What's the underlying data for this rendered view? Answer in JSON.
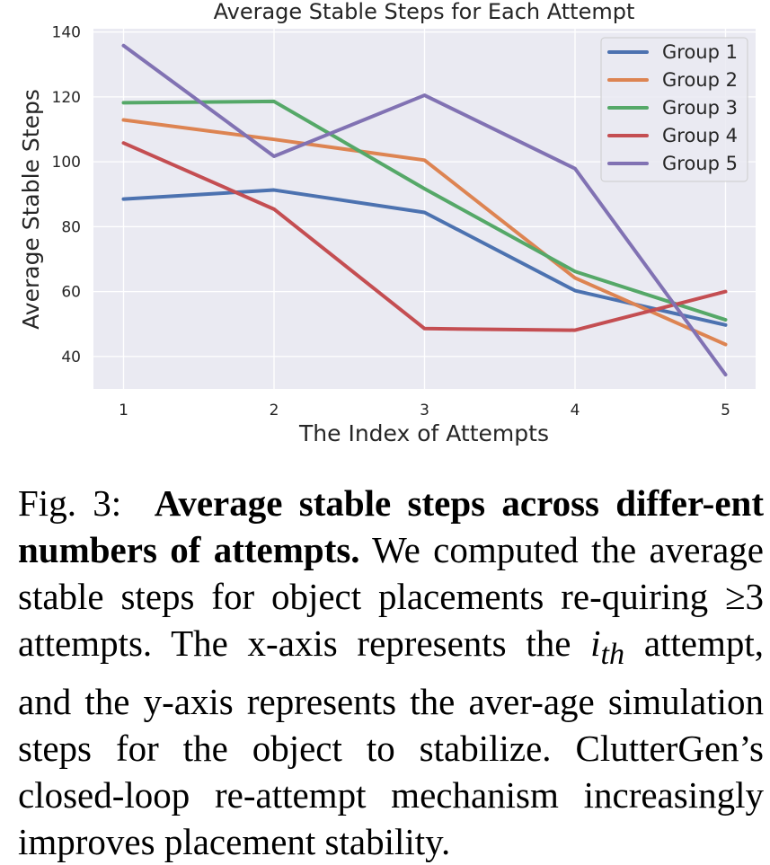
{
  "chart_data": {
    "type": "line",
    "title": "Average Stable Steps for Each Attempt",
    "xlabel": "The Index of Attempts",
    "ylabel": "Average Stable Steps",
    "x": [
      1,
      2,
      3,
      4,
      5
    ],
    "xticks": [
      "1",
      "2",
      "3",
      "4",
      "5"
    ],
    "yticks": [
      "40",
      "60",
      "80",
      "100",
      "120",
      "140"
    ],
    "xlim": [
      0.8,
      5.2
    ],
    "ylim": [
      30,
      141
    ],
    "grid": true,
    "legend_position": "top-right",
    "series": [
      {
        "name": "Group 1",
        "color": "#4c72b0",
        "values": [
          88.5,
          91.3,
          84.4,
          60.3,
          49.7
        ]
      },
      {
        "name": "Group 2",
        "color": "#dd8452",
        "values": [
          112.9,
          106.9,
          100.5,
          64.2,
          43.7
        ]
      },
      {
        "name": "Group 3",
        "color": "#55a868",
        "values": [
          118.2,
          118.6,
          91.7,
          66.2,
          51.3
        ]
      },
      {
        "name": "Group 4",
        "color": "#c44e52",
        "values": [
          105.8,
          85.4,
          48.6,
          48.1,
          60.0
        ]
      },
      {
        "name": "Group 5",
        "color": "#8172b3",
        "values": [
          135.8,
          101.7,
          120.5,
          97.9,
          34.4
        ]
      }
    ]
  },
  "caption": {
    "label": "Fig. 3:",
    "bold_text": "Average stable steps across differ-ent numbers of attempts.",
    "body_1": "We computed the average stable steps for object placements re-quiring ≥3 attempts. The x-axis represents the",
    "math": "i",
    "math_sub": "th",
    "body_2": "attempt, and the y-axis represents the aver-age simulation steps for the object to stabilize. ClutterGen’s closed-loop re-attempt mechanism increasingly improves placement stability."
  }
}
